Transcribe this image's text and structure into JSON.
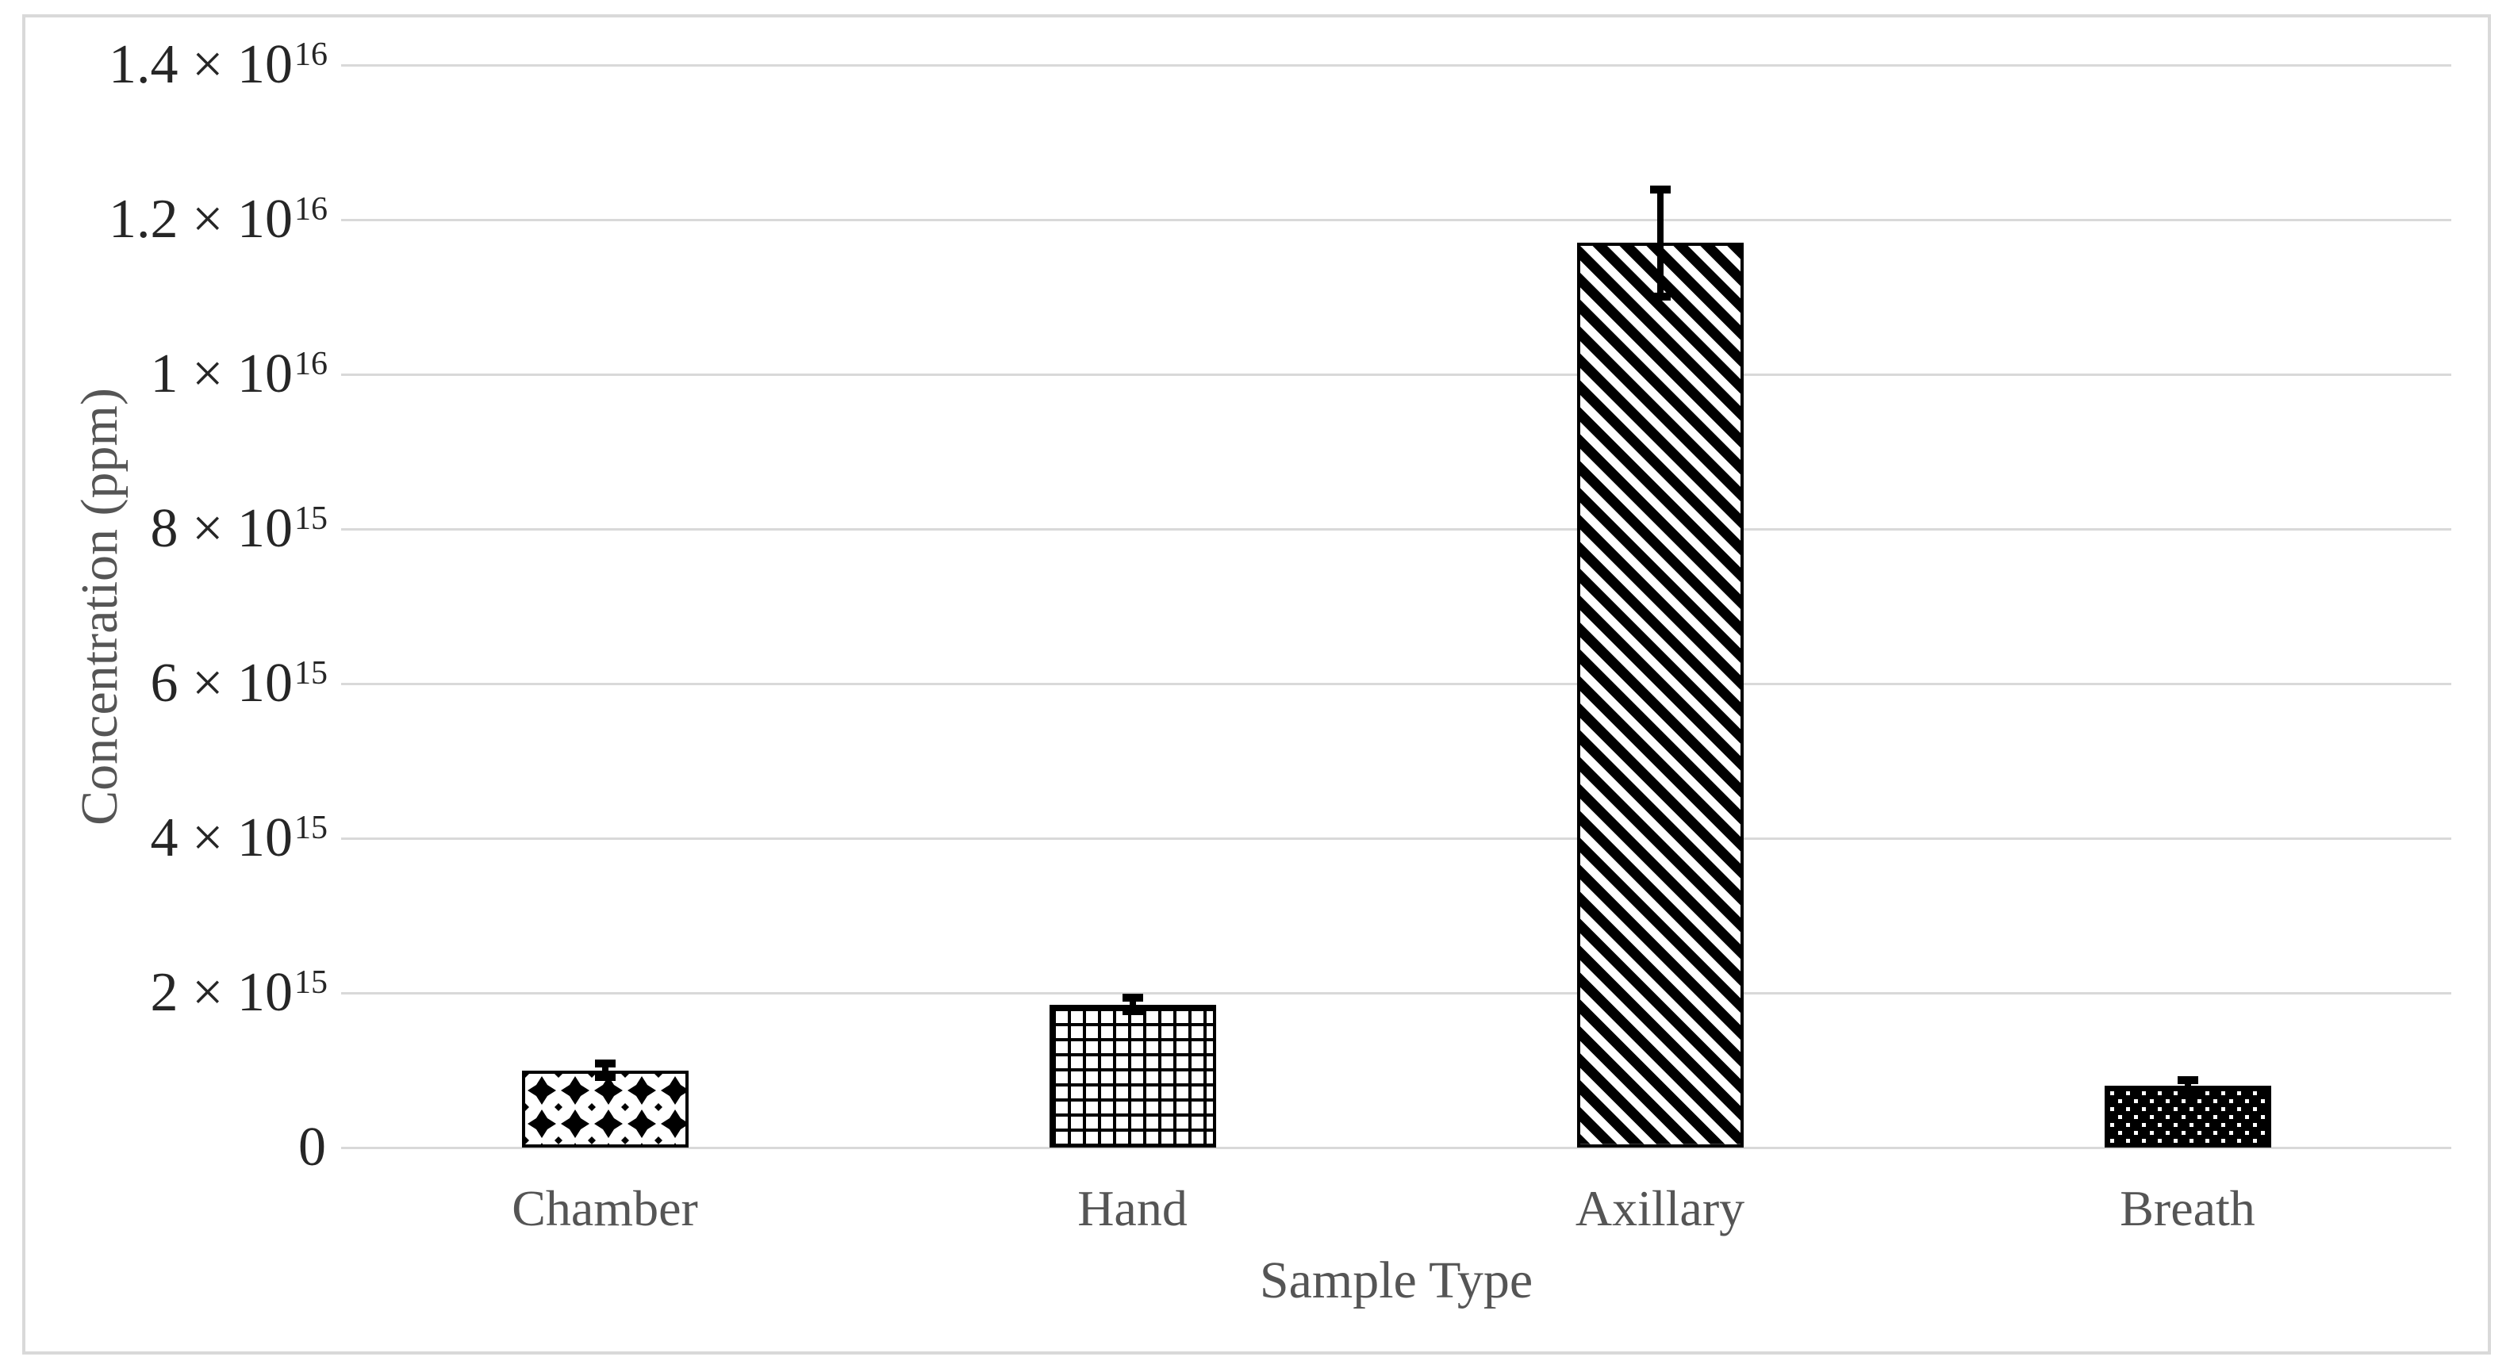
{
  "colors": {
    "background": "#ffffff",
    "frame": "#d9d9d9",
    "gridline": "#d9d9d9",
    "bar_fill": "#000000",
    "bar_outline": "#000000",
    "error_bar": "#000000",
    "tick_label": "#262626",
    "category_label": "#555555",
    "axis_title": "#555555"
  },
  "chart_data": {
    "type": "bar",
    "title": "",
    "xlabel": "Sample Type",
    "ylabel": "Concentration (ppm)",
    "ylim": [
      0,
      1.4e+16
    ],
    "grid": true,
    "legend": "none",
    "categories": [
      "Chamber",
      "Hand",
      "Axillary",
      "Breath"
    ],
    "series": [
      {
        "name": "Concentration",
        "values": [
          1000000000000000.0,
          1850000000000000.0,
          1.17e+16,
          800000000000000.0
        ],
        "errors": [
          100000000000000.0,
          100000000000000.0,
          700000000000000.0,
          80000000000000.0
        ]
      }
    ],
    "bar_patterns": [
      "dotted-diamond",
      "small-grid",
      "wide-downward-diagonal",
      "white-dots-on-black"
    ],
    "yticks": [
      {
        "label": "1.4 × 10",
        "exp": "16",
        "value": 1.4e+16
      },
      {
        "label": "1.2 × 10",
        "exp": "16",
        "value": 1.2e+16
      },
      {
        "label": "1 × 10",
        "exp": "16",
        "value": 1e+16
      },
      {
        "label": "8 × 10",
        "exp": "15",
        "value": 8000000000000000.0
      },
      {
        "label": "6 × 10",
        "exp": "15",
        "value": 6000000000000000.0
      },
      {
        "label": "4 × 10",
        "exp": "15",
        "value": 4000000000000000.0
      },
      {
        "label": "2 × 10",
        "exp": "15",
        "value": 2000000000000000.0
      },
      {
        "label": "0",
        "exp": "",
        "value": 0
      }
    ]
  }
}
